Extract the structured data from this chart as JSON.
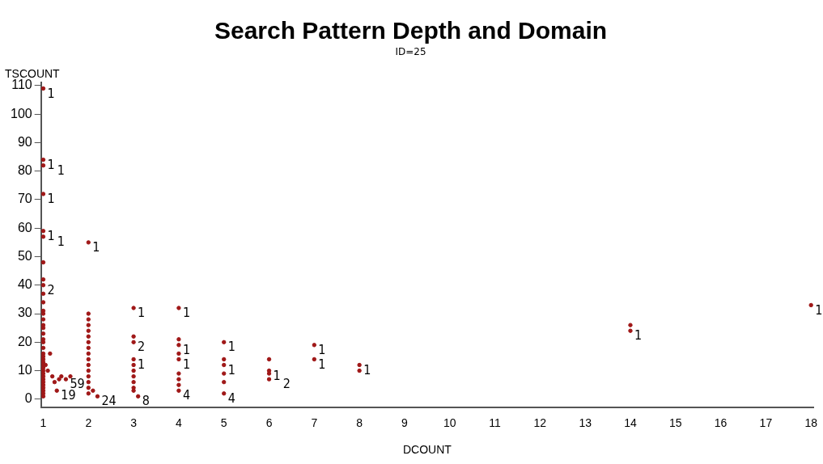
{
  "chart_data": {
    "type": "scatter",
    "title": "Search Pattern Depth and Domain",
    "subtitle": "ID=25",
    "xlabel": "DCOUNT",
    "ylabel": "TSCOUNT",
    "x": [
      1,
      1,
      1,
      1,
      1,
      1,
      1,
      1,
      1,
      1,
      1,
      1,
      1,
      1,
      1,
      1,
      1,
      1,
      1,
      1,
      1,
      1,
      1,
      1,
      1,
      1,
      1,
      1,
      1,
      1,
      1,
      1,
      1,
      1,
      1,
      1,
      1.05,
      1.1,
      1.15,
      1.2,
      1.25,
      1.3,
      1.35,
      1.4,
      1.5,
      1.6,
      2,
      2,
      2,
      2,
      2,
      2,
      2,
      2,
      2,
      2,
      2,
      2,
      2,
      2,
      2,
      2,
      2.1,
      2.2,
      3,
      3,
      3,
      3,
      3,
      3,
      3,
      3,
      3,
      3,
      3.1,
      4,
      4,
      4,
      4,
      4,
      4,
      4,
      4,
      4,
      5,
      5,
      5,
      5,
      5,
      5,
      6,
      6,
      6,
      6,
      7,
      7,
      8,
      8,
      14,
      14,
      18
    ],
    "values": [
      109,
      84,
      82,
      72,
      59,
      57,
      48,
      42,
      40,
      37,
      34,
      31,
      30,
      28,
      26,
      25,
      23,
      21,
      20,
      18,
      16,
      15,
      14,
      13,
      12,
      11,
      10,
      9,
      8,
      7,
      6,
      5,
      4,
      3,
      2,
      1,
      12,
      10,
      16,
      8,
      6,
      3,
      7,
      8,
      7,
      8,
      55,
      30,
      28,
      26,
      24,
      22,
      20,
      18,
      16,
      14,
      12,
      10,
      8,
      6,
      4,
      2,
      3,
      1,
      32,
      22,
      20,
      14,
      12,
      10,
      8,
      6,
      4,
      3,
      1,
      32,
      21,
      19,
      16,
      14,
      9,
      7,
      5,
      3,
      20,
      14,
      12,
      9,
      6,
      2,
      14,
      10,
      9,
      7,
      19,
      14,
      12,
      10,
      26,
      24,
      33
    ],
    "color": "#a01818",
    "marker": "circle",
    "grid": false,
    "legend": false,
    "xlim": [
      0.95,
      18.05
    ],
    "xticks": [
      1,
      2,
      3,
      4,
      5,
      6,
      7,
      8,
      9,
      10,
      11,
      12,
      13,
      14,
      15,
      16,
      17,
      18
    ],
    "ylim": [
      -3,
      111
    ],
    "yticks": [
      0,
      10,
      20,
      30,
      40,
      50,
      60,
      70,
      80,
      90,
      100,
      110
    ],
    "annotations": [
      {
        "text": "1",
        "x": 1,
        "y": 109
      },
      {
        "text": "1",
        "x": 1,
        "y": 84
      },
      {
        "text": "1",
        "x": 1,
        "y": 82
      },
      {
        "text": "1",
        "x": 1,
        "y": 72
      },
      {
        "text": "1",
        "x": 1,
        "y": 59
      },
      {
        "text": "1",
        "x": 1,
        "y": 57
      },
      {
        "text": "2",
        "x": 1,
        "y": 40
      },
      {
        "text": "19",
        "x": 1.3,
        "y": 3
      },
      {
        "text": "59",
        "x": 1.5,
        "y": 7
      },
      {
        "text": "1",
        "x": 2,
        "y": 55
      },
      {
        "text": "24",
        "x": 2.2,
        "y": 1
      },
      {
        "text": "1",
        "x": 3,
        "y": 32
      },
      {
        "text": "2",
        "x": 3,
        "y": 20
      },
      {
        "text": "1",
        "x": 3,
        "y": 14
      },
      {
        "text": "8",
        "x": 3.1,
        "y": 1
      },
      {
        "text": "1",
        "x": 4,
        "y": 32
      },
      {
        "text": "1",
        "x": 4,
        "y": 19
      },
      {
        "text": "1",
        "x": 4,
        "y": 14
      },
      {
        "text": "4",
        "x": 4,
        "y": 3
      },
      {
        "text": "1",
        "x": 5,
        "y": 20
      },
      {
        "text": "1",
        "x": 5,
        "y": 12
      },
      {
        "text": "4",
        "x": 5,
        "y": 2
      },
      {
        "text": "1",
        "x": 6,
        "y": 10
      },
      {
        "text": "2",
        "x": 6,
        "y": 7
      },
      {
        "text": "1",
        "x": 7,
        "y": 19
      },
      {
        "text": "1",
        "x": 7,
        "y": 14
      },
      {
        "text": "1",
        "x": 8,
        "y": 12
      },
      {
        "text": "1",
        "x": 14,
        "y": 24
      },
      {
        "text": "1",
        "x": 18,
        "y": 33
      }
    ]
  }
}
